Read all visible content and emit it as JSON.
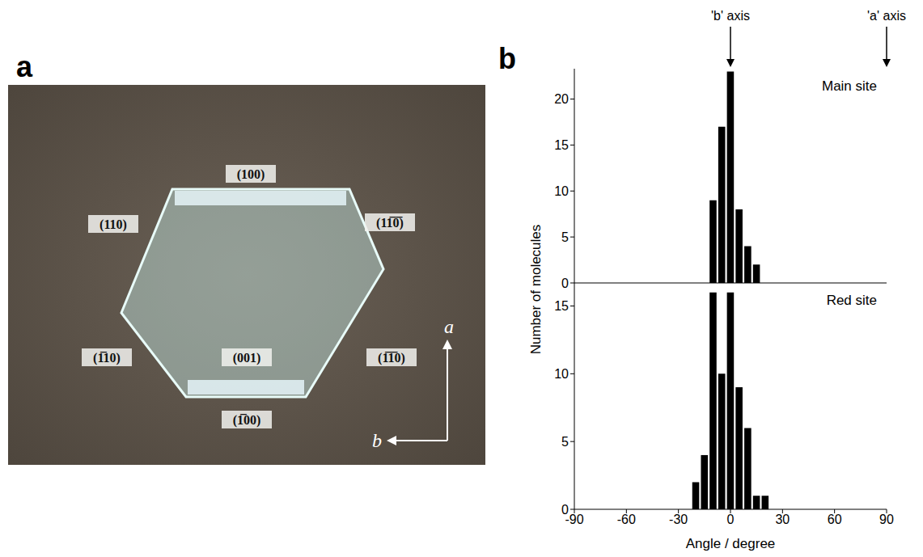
{
  "panel_a": {
    "letter": "a",
    "faces": [
      "(100)",
      "(110)",
      "(11̅0̅)",
      "(1̅10)",
      "(001)",
      "(1̅1̅0)",
      "(1̅00)"
    ],
    "axis_labels": [
      "a",
      "b"
    ]
  },
  "panel_b": {
    "letter": "b",
    "y_label": "Number of molecules"
  },
  "chart_data": [
    {
      "type": "histogram",
      "title": "Main site",
      "bins": [
        -12.5,
        -7.5,
        -2.5,
        2.5,
        7.5,
        12.5,
        17.5
      ],
      "values": [
        9,
        17,
        23,
        8,
        4,
        2
      ],
      "color": "#000000",
      "xlim": [
        -90,
        90
      ],
      "xticks": [
        -90,
        -60,
        -30,
        0,
        30,
        60,
        90
      ],
      "ylim": [
        0,
        23.3
      ],
      "yticks": [
        0,
        5,
        10,
        15,
        20
      ],
      "tick_labels": "y",
      "annotations": [
        {
          "text": "'b' axis",
          "x": 0
        },
        {
          "text": "'a' axis",
          "x": 90
        }
      ]
    },
    {
      "type": "histogram",
      "title": "Red site",
      "bins": [
        -22.5,
        -17.5,
        -12.5,
        -7.5,
        -2.5,
        2.5,
        7.5,
        12.5,
        17.5,
        22.5
      ],
      "values": [
        2,
        4,
        16,
        10,
        16,
        9,
        6,
        1,
        1
      ],
      "color": "#000000",
      "xlim": [
        -90,
        90
      ],
      "xticks": [
        -90,
        -60,
        -30,
        0,
        30,
        60,
        90
      ],
      "ylim": [
        0,
        16.7
      ],
      "yticks": [
        0,
        5,
        10,
        15
      ],
      "xlabel": "Angle / degree"
    }
  ]
}
